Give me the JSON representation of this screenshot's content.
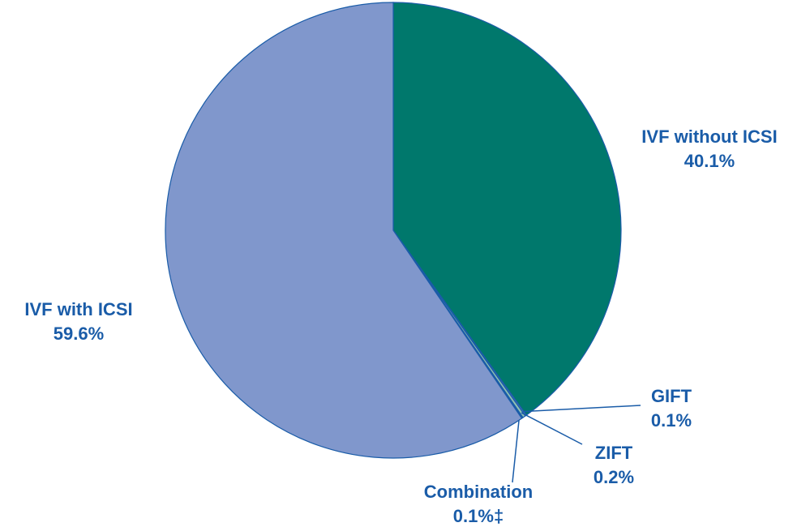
{
  "chart_data": {
    "type": "pie",
    "categories": [
      "IVF without ICSI",
      "GIFT",
      "ZIFT",
      "Combination",
      "IVF with ICSI"
    ],
    "values": [
      40.1,
      0.1,
      0.2,
      0.1,
      59.6
    ],
    "value_labels": [
      "40.1%",
      "0.1%",
      "0.2%",
      "0.1%‡",
      "59.6%"
    ],
    "colors": [
      "#00786c",
      "#5b7dc0",
      "#8fc0b2",
      "#1b5fae",
      "#8097cc"
    ]
  }
}
